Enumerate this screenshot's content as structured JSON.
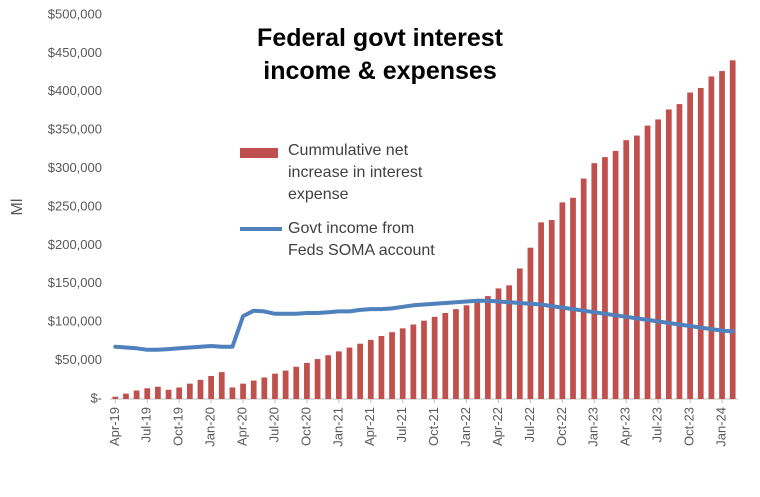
{
  "chart_data": {
    "type": "bar_line",
    "title": "Federal govt interest income & expenses",
    "y_label": "Ml",
    "categories": [
      "Apr-19",
      null,
      null,
      "Jul-19",
      null,
      null,
      "Oct-19",
      null,
      null,
      "Jan-20",
      null,
      null,
      "Apr-20",
      null,
      null,
      "Jul-20",
      null,
      null,
      "Oct-20",
      null,
      null,
      "Jan-21",
      null,
      null,
      "Apr-21",
      null,
      null,
      "Jul-21",
      null,
      null,
      "Oct-21",
      null,
      null,
      "Jan-22",
      null,
      null,
      "Apr-22",
      null,
      null,
      "Jul-22",
      null,
      null,
      "Oct-22",
      null,
      null,
      "Jan-23",
      null,
      null,
      "Apr-23",
      null,
      null,
      "Jul-23",
      null,
      null,
      "Oct-23",
      null,
      null,
      "Jan-24",
      null
    ],
    "series": [
      {
        "name": "Cummulative net increase in interest expense",
        "kind": "bar",
        "color": "#c0504d",
        "values": [
          3000,
          7000,
          11000,
          14000,
          16000,
          12000,
          15000,
          20000,
          25000,
          30000,
          35000,
          15000,
          20000,
          24000,
          28000,
          33000,
          37000,
          42000,
          47000,
          52000,
          57000,
          62000,
          67000,
          72000,
          77000,
          82000,
          87000,
          92000,
          97000,
          102000,
          107000,
          112000,
          117000,
          122000,
          128000,
          134000,
          144000,
          148000,
          170000,
          197000,
          230000,
          233000,
          256000,
          262000,
          287000,
          307000,
          315000,
          323000,
          337000,
          343000,
          356000,
          364000,
          377000,
          384000,
          399000,
          405000,
          420000,
          427000,
          441000
        ]
      },
      {
        "name": "Govt income from Feds SOMA account",
        "kind": "line",
        "color": "#4f81bd",
        "values": [
          68000,
          67000,
          66000,
          64000,
          64000,
          65000,
          66000,
          67000,
          68000,
          69000,
          68000,
          68000,
          108000,
          115000,
          114000,
          111000,
          111000,
          111000,
          112000,
          112000,
          113000,
          114000,
          114000,
          116000,
          117000,
          117000,
          118000,
          120000,
          122000,
          123000,
          124000,
          125000,
          126000,
          127000,
          128000,
          128000,
          127000,
          126000,
          125000,
          124000,
          123000,
          121000,
          119000,
          117000,
          115000,
          113000,
          111000,
          109000,
          107000,
          105000,
          103000,
          101000,
          99000,
          97000,
          95000,
          93000,
          91000,
          89000,
          88000
        ]
      }
    ],
    "ylim": [
      0,
      500000
    ],
    "yticks": [
      {
        "value": 0,
        "label": "$-"
      },
      {
        "value": 50000,
        "label": "$50,000"
      },
      {
        "value": 100000,
        "label": "$100,000"
      },
      {
        "value": 150000,
        "label": "$150,000"
      },
      {
        "value": 200000,
        "label": "$200,000"
      },
      {
        "value": 250000,
        "label": "$250,000"
      },
      {
        "value": 300000,
        "label": "$300,000"
      },
      {
        "value": 350000,
        "label": "$350,000"
      },
      {
        "value": 400000,
        "label": "$400,000"
      },
      {
        "value": 450000,
        "label": "$450,000"
      },
      {
        "value": 500000,
        "label": "$500,000"
      }
    ],
    "grid": false
  }
}
